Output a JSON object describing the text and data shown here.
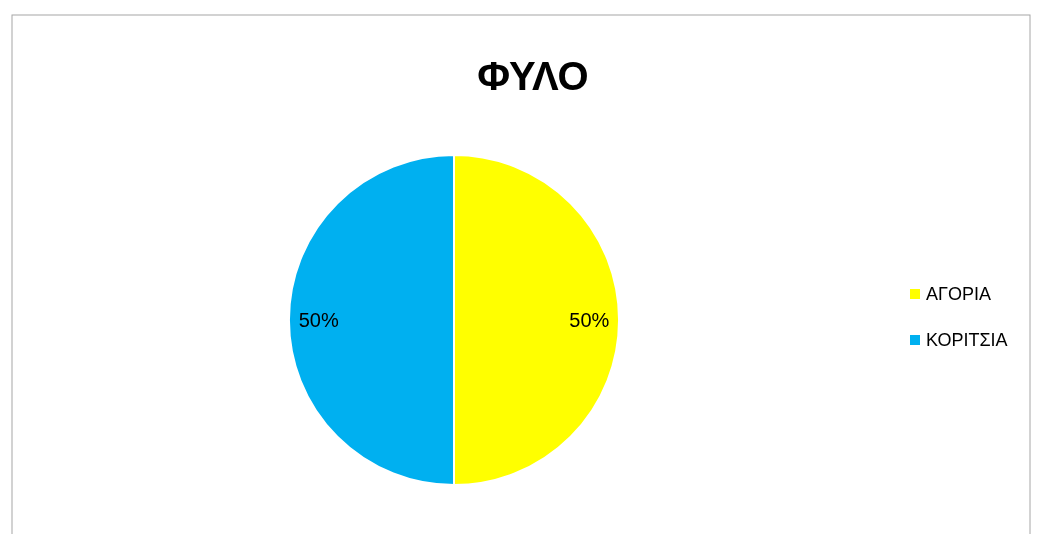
{
  "chart_data": {
    "type": "pie",
    "title": "ΦΥΛΟ",
    "categories": [
      "ΑΓΟΡΙΑ",
      "ΚΟΡΙΤΣΙΑ"
    ],
    "values": [
      50,
      50
    ],
    "colors": [
      "#ffff00",
      "#00b0f0"
    ],
    "value_labels": [
      "50%",
      "50%"
    ],
    "legend": "right"
  }
}
